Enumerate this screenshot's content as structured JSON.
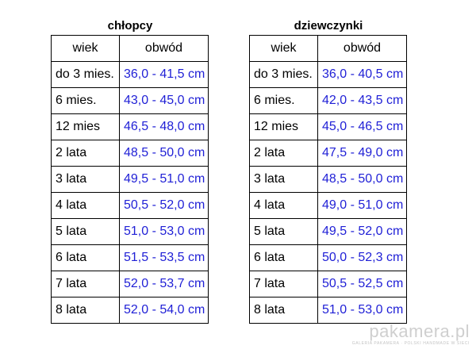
{
  "boys": {
    "title": "chłopcy",
    "headers": [
      "wiek",
      "obwód"
    ],
    "rows": [
      [
        "do 3 mies.",
        "36,0 - 41,5 cm"
      ],
      [
        "6 mies.",
        "43,0 - 45,0 cm"
      ],
      [
        "12 mies",
        "46,5 - 48,0 cm"
      ],
      [
        "2 lata",
        "48,5 - 50,0 cm"
      ],
      [
        "3 lata",
        "49,5 - 51,0 cm"
      ],
      [
        "4 lata",
        "50,5 - 52,0 cm"
      ],
      [
        "5 lata",
        "51,0 - 53,0 cm"
      ],
      [
        "6 lata",
        "51,5 - 53,5 cm"
      ],
      [
        "7 lata",
        "52,0 - 53,7 cm"
      ],
      [
        "8 lata",
        "52,0 - 54,0 cm"
      ]
    ]
  },
  "girls": {
    "title": "dziewczynki",
    "headers": [
      "wiek",
      "obwód"
    ],
    "rows": [
      [
        "do 3 mies.",
        "36,0 - 40,5 cm"
      ],
      [
        "6 mies.",
        "42,0 - 43,5 cm"
      ],
      [
        "12 mies",
        "45,0 - 46,5 cm"
      ],
      [
        "2 lata",
        "47,5 - 49,0 cm"
      ],
      [
        "3 lata",
        "48,5 - 50,0 cm"
      ],
      [
        "4 lata",
        "49,0 - 51,0 cm"
      ],
      [
        "5 lata",
        "49,5 - 52,0 cm"
      ],
      [
        "6 lata",
        "50,0 - 52,3 cm"
      ],
      [
        "7 lata",
        "50,5 - 52,5 cm"
      ],
      [
        "8 lata",
        "51,0 - 53,0 cm"
      ]
    ]
  },
  "watermark": {
    "logo": "pakamera.pl",
    "subtitle": "GALERIA PAKAMERA · POLSKI HANDMADE W SIECI"
  },
  "colors": {
    "value_text": "#1f1fd6",
    "border": "#000000"
  }
}
